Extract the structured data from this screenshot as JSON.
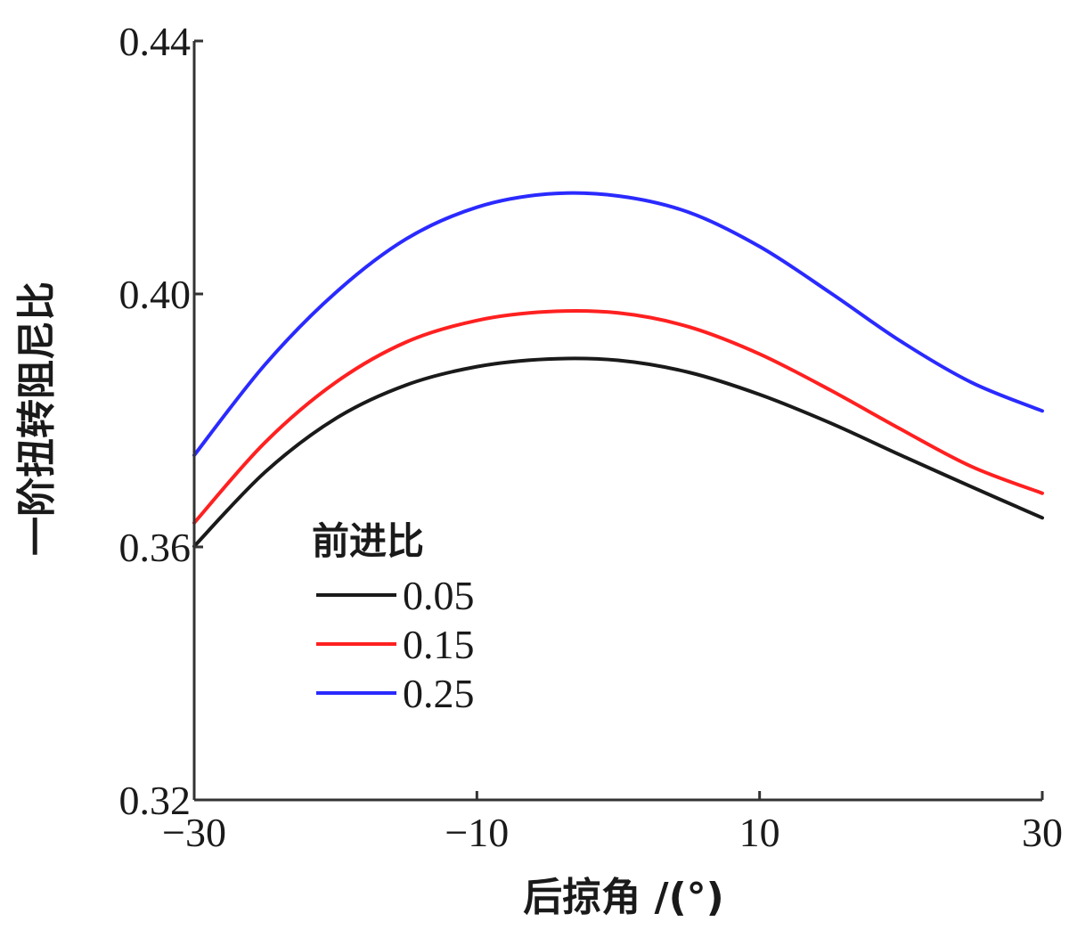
{
  "chart_data": {
    "type": "line",
    "xlabel": "后掠角 /(°)",
    "ylabel": "一阶扭转阻尼比",
    "xlim": [
      -30,
      30
    ],
    "ylim": [
      0.32,
      0.44
    ],
    "xticks": [
      -30,
      -10,
      10,
      30
    ],
    "xtick_labels": [
      "−30",
      "−10",
      "10",
      "30"
    ],
    "yticks": [
      0.32,
      0.36,
      0.4,
      0.44
    ],
    "ytick_labels": [
      "0.32",
      "0.36",
      "0.40",
      "0.44"
    ],
    "grid": false,
    "legend": {
      "title": "前进比",
      "position": "lower-left"
    },
    "x": [
      -30,
      -25,
      -20,
      -15,
      -10,
      -5,
      0,
      5,
      10,
      15,
      20,
      25,
      30
    ],
    "series": [
      {
        "name": "0.05",
        "color": "#1a1a1a",
        "values": [
          0.3601,
          0.3718,
          0.3803,
          0.3856,
          0.3885,
          0.3897,
          0.3895,
          0.3876,
          0.3841,
          0.3796,
          0.3745,
          0.3695,
          0.3646
        ]
      },
      {
        "name": "0.15",
        "color": "#ff2020",
        "values": [
          0.3638,
          0.3765,
          0.386,
          0.3924,
          0.3958,
          0.3972,
          0.397,
          0.3948,
          0.3905,
          0.3848,
          0.3786,
          0.3727,
          0.3685
        ]
      },
      {
        "name": "0.25",
        "color": "#2a2aff",
        "values": [
          0.3745,
          0.3888,
          0.4002,
          0.4087,
          0.4137,
          0.4158,
          0.4155,
          0.4129,
          0.4075,
          0.4002,
          0.3925,
          0.386,
          0.3815
        ]
      }
    ]
  }
}
